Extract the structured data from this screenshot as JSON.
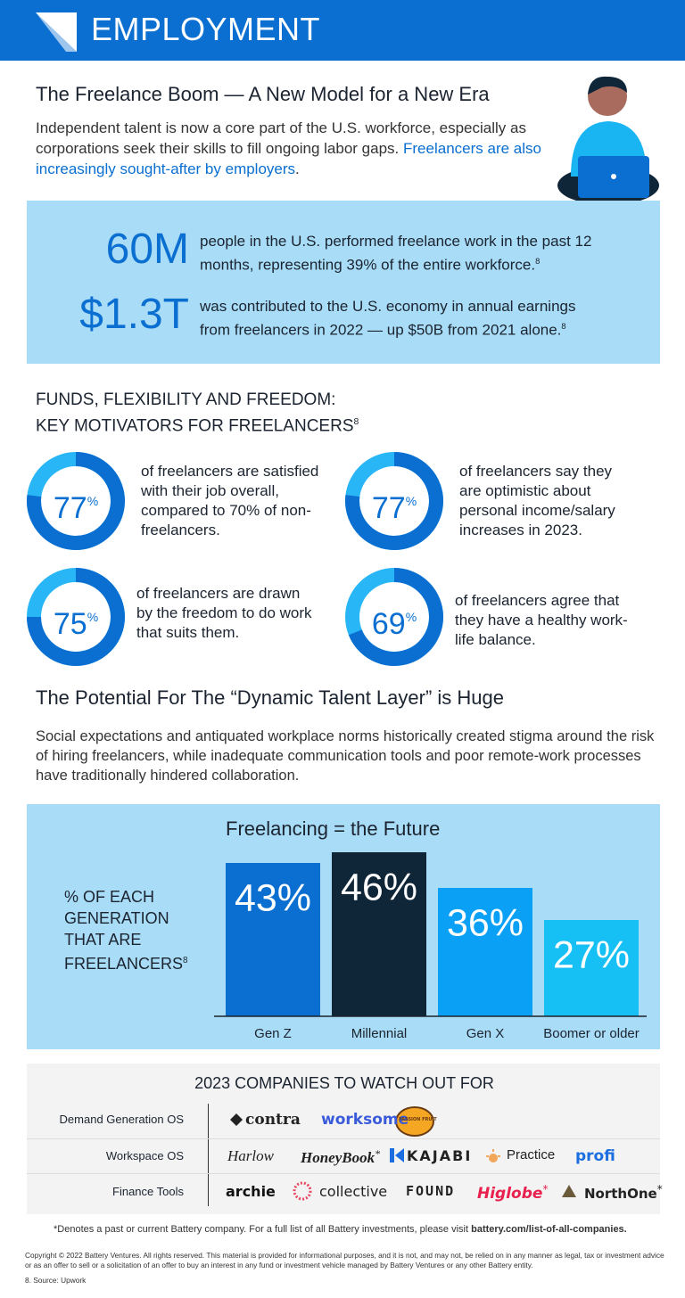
{
  "header": {
    "title": "EMPLOYMENT"
  },
  "intro": {
    "title": "The Freelance Boom — A New Model for a New Era",
    "text": "Independent talent is now a core part of the U.S. workforce, especially as corporations seek their skills to fill ongoing labor gaps.",
    "highlight": "Freelancers are also increasingly sought-after by employers",
    "end": "."
  },
  "stats": [
    {
      "value": "60M",
      "text": "people in the U.S. performed freelance work in the past 12 months, representing 39% of the entire workforce.",
      "footnote": "8"
    },
    {
      "value": "$1.3T",
      "text": "was contributed to the U.S. economy in annual earnings from freelancers in 2022 — up $50B from 2021 alone.",
      "footnote": "8"
    }
  ],
  "motivators": {
    "title": "FUNDS, FLEXIBILITY AND FREEDOM:",
    "subtitle": "KEY MOTIVATORS FOR FREELANCERS",
    "footnote": "8",
    "percent_sign": "%",
    "items": [
      {
        "percent": 77,
        "text": "of freelancers are satisfied with their job overall, compared to 70% of non-freelancers."
      },
      {
        "percent": 77,
        "text": "of freelancers say they are optimistic about personal income/salary increases in 2023."
      },
      {
        "percent": 75,
        "text": "of freelancers are drawn by the freedom to do work that suits them."
      },
      {
        "percent": 69,
        "text": "of freelancers agree that they have a healthy work-life balance."
      }
    ]
  },
  "potential": {
    "title": "The Potential For The “Dynamic Talent Layer” is Huge",
    "text": "Social expectations and antiquated workplace norms historically created stigma around the risk of hiring freelancers, while inadequate communication tools and poor remote-work processes have traditionally hindered collaboration."
  },
  "chart_data": {
    "type": "bar",
    "title": "Freelancing = the Future",
    "y_label": "% OF EACH GENERATION THAT ARE FREELANCERS",
    "footnote": "8",
    "categories": [
      "Gen Z",
      "Millennial",
      "Gen X",
      "Boomer or older"
    ],
    "values": [
      43,
      46,
      36,
      27
    ],
    "value_labels": [
      "43%",
      "46%",
      "36%",
      "27%"
    ],
    "colors": [
      "#0a6fd1",
      "#0f2538",
      "#0aa0f5",
      "#16c0f4"
    ]
  },
  "companies": {
    "title": "2023 COMPANIES TO WATCH OUT FOR",
    "rows": [
      {
        "label": "Demand Generation OS",
        "logos": [
          {
            "name": "contra"
          },
          {
            "name": "worksome"
          },
          {
            "name": "PASSION FRUIT"
          }
        ]
      },
      {
        "label": "Workspace OS",
        "logos": [
          {
            "name": "Harlow"
          },
          {
            "name": "HoneyBook",
            "mark": "*"
          },
          {
            "name": "KAJABI"
          },
          {
            "name": "Practice"
          },
          {
            "name": "profi"
          }
        ]
      },
      {
        "label": "Finance Tools",
        "logos": [
          {
            "name": "archie"
          },
          {
            "name": "collective"
          },
          {
            "name": "FOUND"
          },
          {
            "name": "Higlobe",
            "mark": "*"
          },
          {
            "name": "NorthOne",
            "mark": "*"
          }
        ]
      }
    ],
    "note": "*Denotes a past or current Battery company. For a full list of all Battery investments, please visit",
    "link": "battery.com/list-of-all-companies."
  },
  "footer": {
    "copyright": "Copyright © 2022 Battery Ventures. All rights reserved. This material is provided for informational purposes, and it is not, and may not, be relied on in any manner as legal, tax or investment advice or as an offer to sell or a solicitation of an offer to buy an interest in any fund or investment vehicle managed by Battery Ventures or any other Battery entity.",
    "source": "8. Source: Upwork"
  }
}
